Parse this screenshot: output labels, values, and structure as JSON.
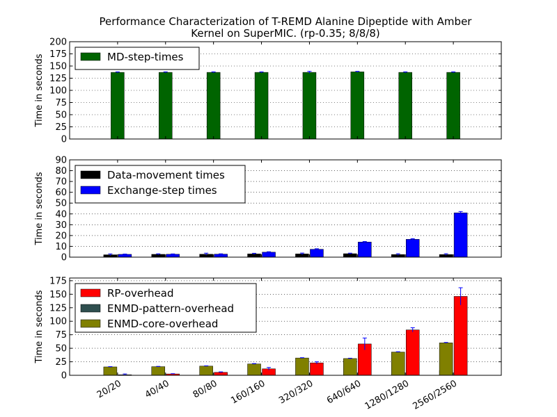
{
  "figure": {
    "title_line1": "Performance Characterization of T-REMD Alanine Dipeptide with Amber",
    "title_line2": "Kernel on SuperMIC. (rp-0.35; 8/8/8)"
  },
  "chart_data": [
    {
      "type": "bar",
      "categories": [
        "20/20",
        "40/40",
        "80/80",
        "160/160",
        "320/320",
        "640/640",
        "1280/1280",
        "2560/2560"
      ],
      "ylabel": "Time in seconds",
      "xlabel": "",
      "ylim": [
        0,
        200
      ],
      "yticks": [
        0,
        25,
        50,
        75,
        100,
        125,
        150,
        175,
        200
      ],
      "grid": "horizontal-dotted",
      "legend_position": "upper-left",
      "show_xticklabels": false,
      "series": [
        {
          "name": "MD-step-times",
          "color": "#006400",
          "values": [
            137,
            137,
            137,
            137,
            137,
            138,
            137,
            137
          ],
          "errors": [
            1,
            1,
            1,
            1,
            2,
            1,
            1,
            1
          ]
        }
      ]
    },
    {
      "type": "bar",
      "categories": [
        "20/20",
        "40/40",
        "80/80",
        "160/160",
        "320/320",
        "640/640",
        "1280/1280",
        "2560/2560"
      ],
      "ylabel": "Time in seconds",
      "xlabel": "",
      "ylim": [
        0,
        90
      ],
      "yticks": [
        0,
        10,
        20,
        30,
        40,
        50,
        60,
        70,
        80,
        90
      ],
      "grid": "horizontal-dotted",
      "legend_position": "upper-left",
      "show_xticklabels": false,
      "series": [
        {
          "name": "Data-movement times",
          "color": "#000000",
          "values": [
            2.2,
            2.6,
            2.7,
            3.0,
            3.0,
            3.2,
            2.4,
            2.4
          ],
          "errors": [
            0.8,
            0.5,
            1.0,
            0.6,
            0.8,
            0.5,
            0.8,
            0.8
          ]
        },
        {
          "name": "Exchange-step times",
          "color": "#0000ff",
          "values": [
            2.6,
            2.7,
            2.8,
            4.6,
            7.3,
            14.0,
            16.5,
            41.0
          ],
          "errors": [
            0.3,
            0.3,
            0.3,
            0.4,
            0.5,
            0.5,
            0.6,
            1.2
          ]
        }
      ]
    },
    {
      "type": "bar",
      "categories": [
        "20/20",
        "40/40",
        "80/80",
        "160/160",
        "320/320",
        "640/640",
        "1280/1280",
        "2560/2560"
      ],
      "ylabel": "Time in seconds",
      "xlabel": "",
      "ylim": [
        0,
        180
      ],
      "yticks": [
        0,
        25,
        50,
        75,
        100,
        125,
        150,
        175
      ],
      "grid": "horizontal-dotted",
      "legend_position": "upper-left",
      "show_xticklabels": true,
      "series": [
        {
          "name": "RP-overhead",
          "color": "#ff0000",
          "values": [
            1,
            2.5,
            5.5,
            12,
            23,
            58,
            84,
            146
          ],
          "errors": [
            1.5,
            0.5,
            0.8,
            2.5,
            2,
            11,
            4,
            16
          ]
        },
        {
          "name": "ENMD-pattern-overhead",
          "color": "#2f4f4f",
          "values": [
            0.2,
            0.2,
            0.3,
            0.4,
            0.7,
            1.2,
            3,
            9
          ],
          "errors": [
            0.1,
            0.1,
            0.1,
            0.1,
            0.2,
            0.5,
            0.8,
            4
          ]
        },
        {
          "name": "ENMD-core-overhead",
          "color": "#808000",
          "values": [
            15.5,
            16,
            17,
            21,
            32,
            31,
            43,
            60
          ],
          "errors": [
            0.5,
            0.5,
            0.5,
            0.7,
            0.6,
            0.6,
            0.6,
            0.8
          ]
        }
      ]
    }
  ]
}
